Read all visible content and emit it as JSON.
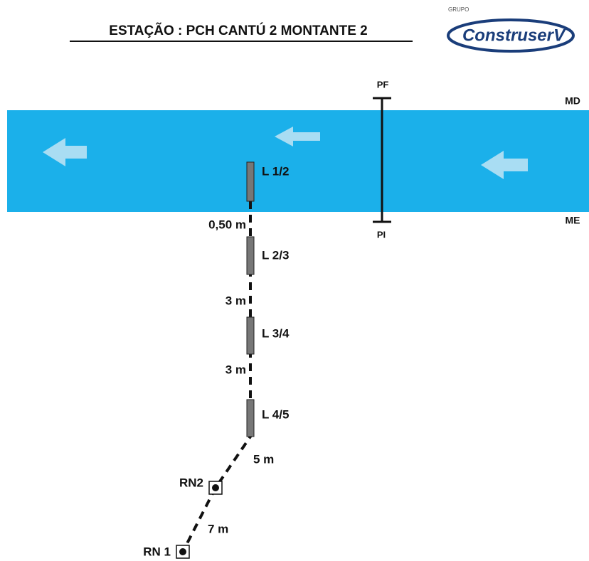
{
  "header": {
    "title": "ESTAÇÃO : PCH CANTÚ 2 MONTANTE 2",
    "logo_group": "GRUPO",
    "logo_name": "ConstruserV"
  },
  "river": {
    "right_bank": "MD",
    "left_bank": "ME",
    "section_start": "PF",
    "section_end": "PI"
  },
  "gauges": [
    {
      "label": "L 1/2"
    },
    {
      "label": "L 2/3"
    },
    {
      "label": "L 3/4"
    },
    {
      "label": "L 4/5"
    }
  ],
  "distances": [
    "0,50 m",
    "3 m",
    "3 m",
    "5 m",
    "7 m"
  ],
  "benchmarks": [
    {
      "label": "RN2"
    },
    {
      "label": "RN 1"
    }
  ]
}
